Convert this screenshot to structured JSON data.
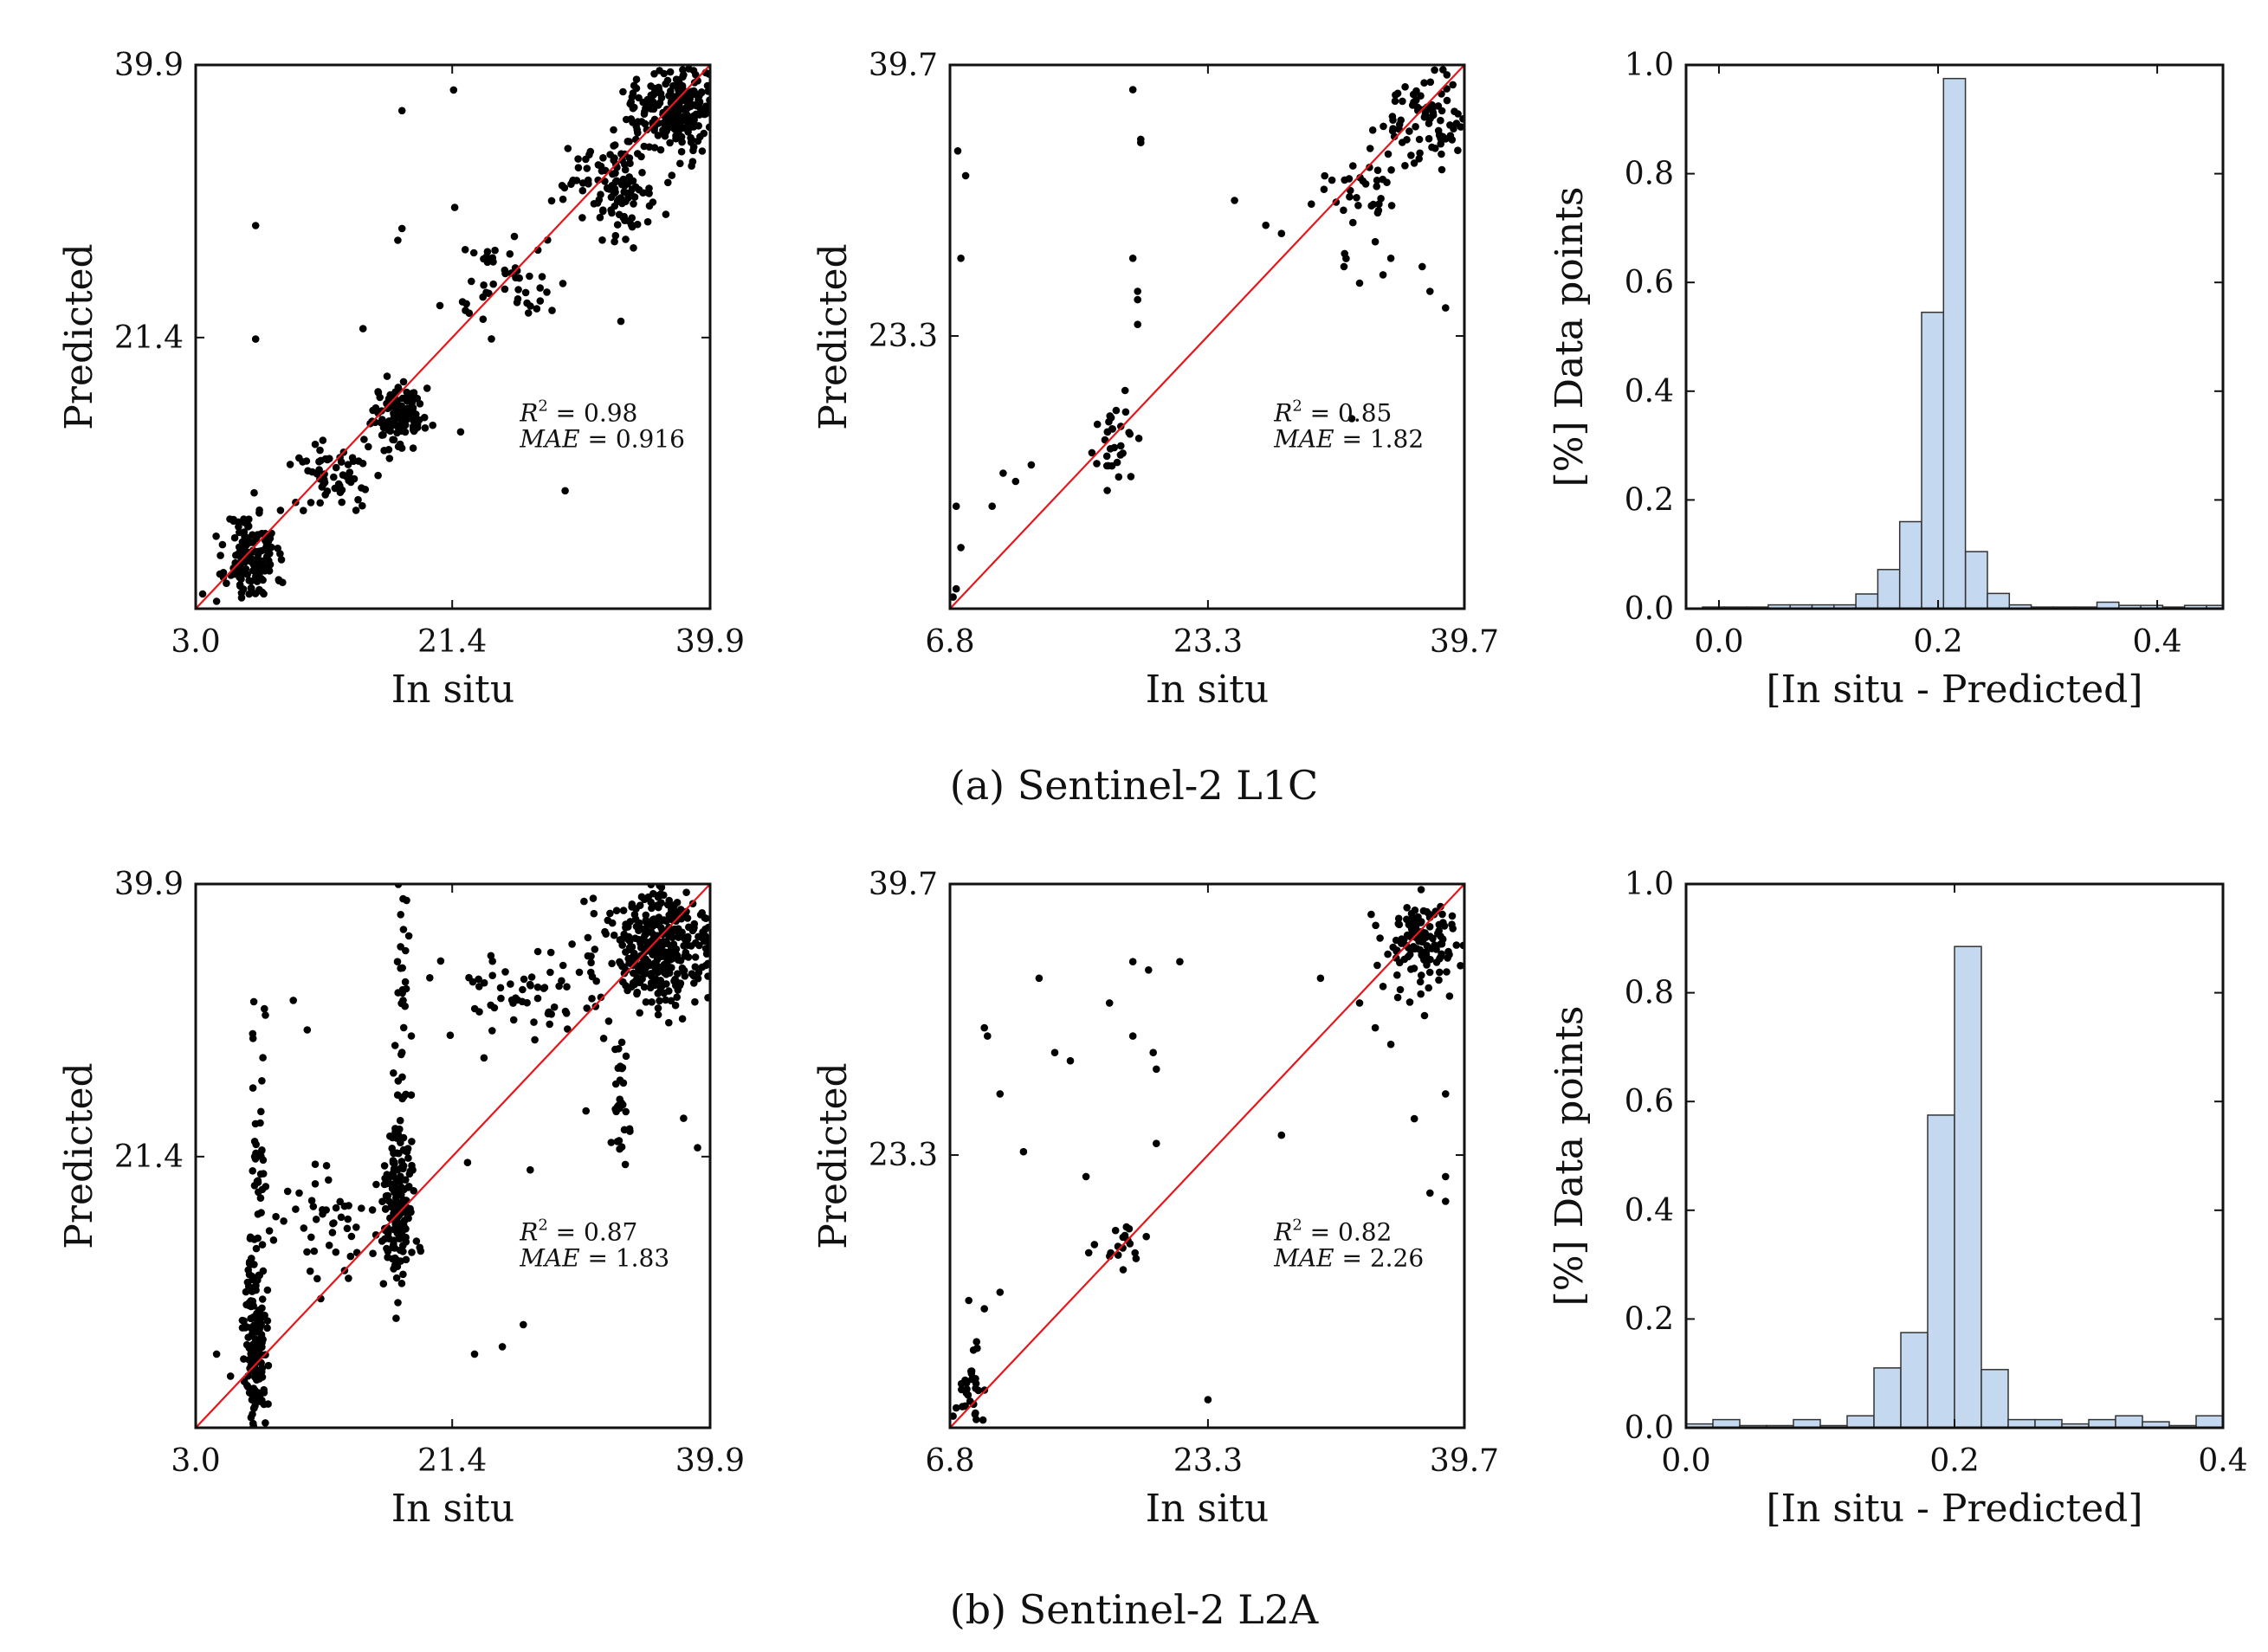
{
  "captions": {
    "a": "(a) Sentinel-2 L1C",
    "b": "(b) Sentinel-2 L2A"
  },
  "colors": {
    "points": "#000000",
    "identity_line": "#e8161b",
    "hist_fill": "#c4d8ef",
    "hist_edge": "#333333"
  },
  "chart_data": [
    {
      "id": "a1",
      "type": "scatter",
      "xlabel": "In situ",
      "ylabel": "Predicted",
      "xlim": [
        3.0,
        39.9
      ],
      "ylim": [
        3.0,
        39.9
      ],
      "xticks": [
        "3.0",
        "21.4",
        "39.9"
      ],
      "yticks": [
        "21.4",
        "39.9"
      ],
      "xtick_values": [
        3.0,
        21.4,
        39.9
      ],
      "ytick_values": [
        21.4,
        39.9
      ],
      "annotation": {
        "r2": "= 0.98",
        "mae": "= 0.916"
      },
      "clusters": [
        {
          "cx": 7.0,
          "cy": 6.5,
          "sx": 0.9,
          "sy": 1.6,
          "n": 140
        },
        {
          "cx": 13.0,
          "cy": 12.2,
          "sx": 1.8,
          "sy": 1.2,
          "n": 60
        },
        {
          "cx": 17.5,
          "cy": 16.2,
          "sx": 0.9,
          "sy": 1.0,
          "n": 120
        },
        {
          "cx": 25.5,
          "cy": 25.0,
          "sx": 2.2,
          "sy": 1.8,
          "n": 50
        },
        {
          "cx": 33.0,
          "cy": 32.0,
          "sx": 1.7,
          "sy": 1.8,
          "n": 120
        },
        {
          "cx": 37.5,
          "cy": 37.0,
          "sx": 1.6,
          "sy": 1.3,
          "n": 260
        }
      ],
      "outliers": [
        [
          7.3,
          29.0
        ],
        [
          7.3,
          21.3
        ],
        [
          17.8,
          36.8
        ],
        [
          21.5,
          38.2
        ],
        [
          15.0,
          22.0
        ],
        [
          17.5,
          28.0
        ],
        [
          17.8,
          28.8
        ],
        [
          29.5,
          11.0
        ],
        [
          33.5,
          22.5
        ],
        [
          22.0,
          15.0
        ],
        [
          3.5,
          4.0
        ],
        [
          4.5,
          3.5
        ]
      ],
      "seed": 11
    },
    {
      "id": "a2",
      "type": "scatter",
      "xlabel": "In situ",
      "ylabel": "Predicted",
      "xlim": [
        6.8,
        39.7
      ],
      "ylim": [
        6.8,
        39.7
      ],
      "xticks": [
        "6.8",
        "23.3",
        "39.7"
      ],
      "yticks": [
        "23.3",
        "39.7"
      ],
      "xtick_values": [
        6.8,
        23.3,
        39.7
      ],
      "ytick_values": [
        23.3,
        39.7
      ],
      "annotation": {
        "r2": "= 0.85",
        "mae": "= 1.82"
      },
      "clusters": [
        {
          "cx": 17.5,
          "cy": 16.5,
          "sx": 0.6,
          "sy": 1.0,
          "n": 30
        },
        {
          "cx": 37.0,
          "cy": 36.5,
          "sx": 1.5,
          "sy": 1.4,
          "n": 90
        },
        {
          "cx": 33.0,
          "cy": 32.0,
          "sx": 1.5,
          "sy": 1.5,
          "n": 35
        }
      ],
      "outliers": [
        [
          7.3,
          34.5
        ],
        [
          7.8,
          33.0
        ],
        [
          7.5,
          28.0
        ],
        [
          7.2,
          13.0
        ],
        [
          7.5,
          10.5
        ],
        [
          7.0,
          7.5
        ],
        [
          7.2,
          8.0
        ],
        [
          10.2,
          15.0
        ],
        [
          11.0,
          14.5
        ],
        [
          12.0,
          15.5
        ],
        [
          9.5,
          13.0
        ],
        [
          18.5,
          38.2
        ],
        [
          19.0,
          35.0
        ],
        [
          19.0,
          35.2
        ],
        [
          18.5,
          28.0
        ],
        [
          18.8,
          25.5
        ],
        [
          18.8,
          26.0
        ],
        [
          18.8,
          24.0
        ],
        [
          18.0,
          20.0
        ],
        [
          25.0,
          31.5
        ],
        [
          27.0,
          30.0
        ],
        [
          28.0,
          29.5
        ],
        [
          32.0,
          27.5
        ],
        [
          34.5,
          27.0
        ],
        [
          33.0,
          26.5
        ],
        [
          37.0,
          27.5
        ],
        [
          37.5,
          26.0
        ],
        [
          32.5,
          18.3
        ],
        [
          38.5,
          25.0
        ],
        [
          34.0,
          29.0
        ],
        [
          35.0,
          28.0
        ]
      ],
      "seed": 23
    },
    {
      "id": "a3",
      "type": "bar",
      "xlabel": "[In situ - Predicted]",
      "ylabel": "[%] Data points",
      "xlim": [
        -0.03,
        0.46
      ],
      "ylim": [
        0.0,
        1.0
      ],
      "xticks": [
        "0.0",
        "0.2",
        "0.4"
      ],
      "xtick_values": [
        0.0,
        0.2,
        0.4
      ],
      "yticks": [
        "0.0",
        "0.2",
        "0.4",
        "0.6",
        "0.8",
        "1.0"
      ],
      "ytick_values": [
        0.0,
        0.2,
        0.4,
        0.6,
        0.8,
        1.0
      ],
      "bin_start": -0.015,
      "bin_width": 0.02,
      "values": [
        0.003,
        0.003,
        0.003,
        0.007,
        0.007,
        0.007,
        0.007,
        0.027,
        0.072,
        0.16,
        0.545,
        0.975,
        0.105,
        0.028,
        0.007,
        0.003,
        0.003,
        0.003,
        0.012,
        0.006,
        0.006,
        0.003,
        0.006,
        0.006
      ]
    },
    {
      "id": "b1",
      "type": "scatter",
      "xlabel": "In situ",
      "ylabel": "Predicted",
      "xlim": [
        3.0,
        39.9
      ],
      "ylim": [
        3.0,
        39.9
      ],
      "xticks": [
        "3.0",
        "21.4",
        "39.9"
      ],
      "yticks": [
        "21.4",
        "39.9"
      ],
      "xtick_values": [
        3.0,
        21.4,
        39.9
      ],
      "ytick_values": [
        21.4,
        39.9
      ],
      "annotation": {
        "r2": "= 0.87",
        "mae": "= 1.83"
      },
      "clusters": [
        {
          "cx": 7.3,
          "cy": 8.5,
          "sx": 0.4,
          "sy": 3.0,
          "n": 130
        },
        {
          "cx": 7.3,
          "cy": 19.0,
          "sx": 0.3,
          "sy": 7.0,
          "n": 50
        },
        {
          "cx": 17.5,
          "cy": 18.5,
          "sx": 0.5,
          "sy": 2.5,
          "n": 140
        },
        {
          "cx": 17.8,
          "cy": 28.0,
          "sx": 0.3,
          "sy": 6.0,
          "n": 50
        },
        {
          "cx": 13.5,
          "cy": 17.0,
          "sx": 3.0,
          "sy": 2.5,
          "n": 60
        },
        {
          "cx": 27.0,
          "cy": 32.5,
          "sx": 3.0,
          "sy": 1.5,
          "n": 60
        },
        {
          "cx": 36.5,
          "cy": 35.5,
          "sx": 2.0,
          "sy": 2.0,
          "n": 380
        },
        {
          "cx": 33.5,
          "cy": 25.5,
          "sx": 0.4,
          "sy": 2.5,
          "n": 30
        }
      ],
      "outliers": [
        [
          4.5,
          8.0
        ],
        [
          5.5,
          6.5
        ],
        [
          22.5,
          21.0
        ],
        [
          23.0,
          8.0
        ],
        [
          25.0,
          8.5
        ],
        [
          26.5,
          10.0
        ],
        [
          27.0,
          20.5
        ],
        [
          31.0,
          24.5
        ],
        [
          38.0,
          24.0
        ],
        [
          39.0,
          22.0
        ],
        [
          8.0,
          31.0
        ],
        [
          11.0,
          30.0
        ],
        [
          10.0,
          32.0
        ]
      ],
      "seed": 37
    },
    {
      "id": "b2",
      "type": "scatter",
      "xlabel": "In situ",
      "ylabel": "Predicted",
      "xlim": [
        6.8,
        39.7
      ],
      "ylim": [
        6.8,
        39.7
      ],
      "xticks": [
        "6.8",
        "23.3",
        "39.7"
      ],
      "yticks": [
        "23.3",
        "39.7"
      ],
      "xtick_values": [
        6.8,
        23.3,
        39.7
      ],
      "ytick_values": [
        23.3,
        39.7
      ],
      "annotation": {
        "r2": "= 0.82",
        "mae": "= 2.26"
      },
      "clusters": [
        {
          "cx": 8.2,
          "cy": 9.0,
          "sx": 0.5,
          "sy": 1.2,
          "n": 30
        },
        {
          "cx": 17.8,
          "cy": 17.8,
          "sx": 0.8,
          "sy": 0.8,
          "n": 18
        },
        {
          "cx": 37.0,
          "cy": 36.0,
          "sx": 1.3,
          "sy": 1.5,
          "n": 130
        }
      ],
      "outliers": [
        [
          7.0,
          7.5
        ],
        [
          7.2,
          8.0
        ],
        [
          8.0,
          14.5
        ],
        [
          9.0,
          14.0
        ],
        [
          8.5,
          12.0
        ],
        [
          8.3,
          11.5
        ],
        [
          10.0,
          15.0
        ],
        [
          10.0,
          27.0
        ],
        [
          11.5,
          23.5
        ],
        [
          12.5,
          34.0
        ],
        [
          13.5,
          29.5
        ],
        [
          14.5,
          29.0
        ],
        [
          15.5,
          22.0
        ],
        [
          17.0,
          32.5
        ],
        [
          18.5,
          30.5
        ],
        [
          19.5,
          34.5
        ],
        [
          19.8,
          29.5
        ],
        [
          20.0,
          28.5
        ],
        [
          20.0,
          24.0
        ],
        [
          21.5,
          35.0
        ],
        [
          9.0,
          31.0
        ],
        [
          9.2,
          30.5
        ],
        [
          18.5,
          35.0
        ],
        [
          23.3,
          8.5
        ],
        [
          28.0,
          24.5
        ],
        [
          30.5,
          34.0
        ],
        [
          35.0,
          30.0
        ],
        [
          36.5,
          25.5
        ],
        [
          38.5,
          27.0
        ],
        [
          37.5,
          21.0
        ],
        [
          38.5,
          22.0
        ],
        [
          33.0,
          32.5
        ],
        [
          34.0,
          31.0
        ],
        [
          34.5,
          33.5
        ],
        [
          38.5,
          20.5
        ]
      ],
      "seed": 53
    },
    {
      "id": "b3",
      "type": "bar",
      "xlabel": "[In situ - Predicted]",
      "ylabel": "[%] Data points",
      "xlim": [
        0.0,
        0.4
      ],
      "ylim": [
        0.0,
        1.0
      ],
      "xticks": [
        "0.0",
        "0.2",
        "0.4"
      ],
      "xtick_values": [
        0.0,
        0.2,
        0.4
      ],
      "yticks": [
        "0.0",
        "0.2",
        "0.4",
        "0.6",
        "0.8",
        "1.0"
      ],
      "ytick_values": [
        0.0,
        0.2,
        0.4,
        0.6,
        0.8,
        1.0
      ],
      "bin_start": 0.0,
      "bin_width": 0.02,
      "values": [
        0.007,
        0.015,
        0.004,
        0.004,
        0.015,
        0.004,
        0.022,
        0.11,
        0.175,
        0.575,
        0.885,
        0.107,
        0.015,
        0.015,
        0.007,
        0.015,
        0.022,
        0.011,
        0.004,
        0.022
      ]
    }
  ]
}
